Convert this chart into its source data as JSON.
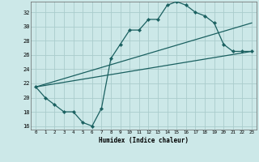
{
  "title": "",
  "xlabel": "Humidex (Indice chaleur)",
  "background_color": "#cce8e8",
  "grid_color": "#aacccc",
  "line_color": "#1a6060",
  "xlim": [
    -0.5,
    23.5
  ],
  "ylim": [
    15.5,
    33.5
  ],
  "xticks": [
    0,
    1,
    2,
    3,
    4,
    5,
    6,
    7,
    8,
    9,
    10,
    11,
    12,
    13,
    14,
    15,
    16,
    17,
    18,
    19,
    20,
    21,
    22,
    23
  ],
  "yticks": [
    16,
    18,
    20,
    22,
    24,
    26,
    28,
    30,
    32
  ],
  "line1_x": [
    0,
    1,
    2,
    3,
    4,
    5,
    6,
    7,
    8,
    9,
    10,
    11,
    12,
    13,
    14,
    15,
    16,
    17,
    18,
    19,
    20,
    21,
    22,
    23
  ],
  "line1_y": [
    21.5,
    20.0,
    19.0,
    18.0,
    18.0,
    16.5,
    16.0,
    18.5,
    25.5,
    27.5,
    29.5,
    29.5,
    31.0,
    31.0,
    33.0,
    33.5,
    33.0,
    32.0,
    31.5,
    30.5,
    27.5,
    26.5,
    26.5,
    26.5
  ],
  "line2_x": [
    0,
    23
  ],
  "line2_y": [
    21.5,
    26.5
  ],
  "line3_x": [
    0,
    23
  ],
  "line3_y": [
    21.5,
    30.5
  ],
  "marker": "D",
  "markersize": 2.2,
  "linewidth": 0.9
}
